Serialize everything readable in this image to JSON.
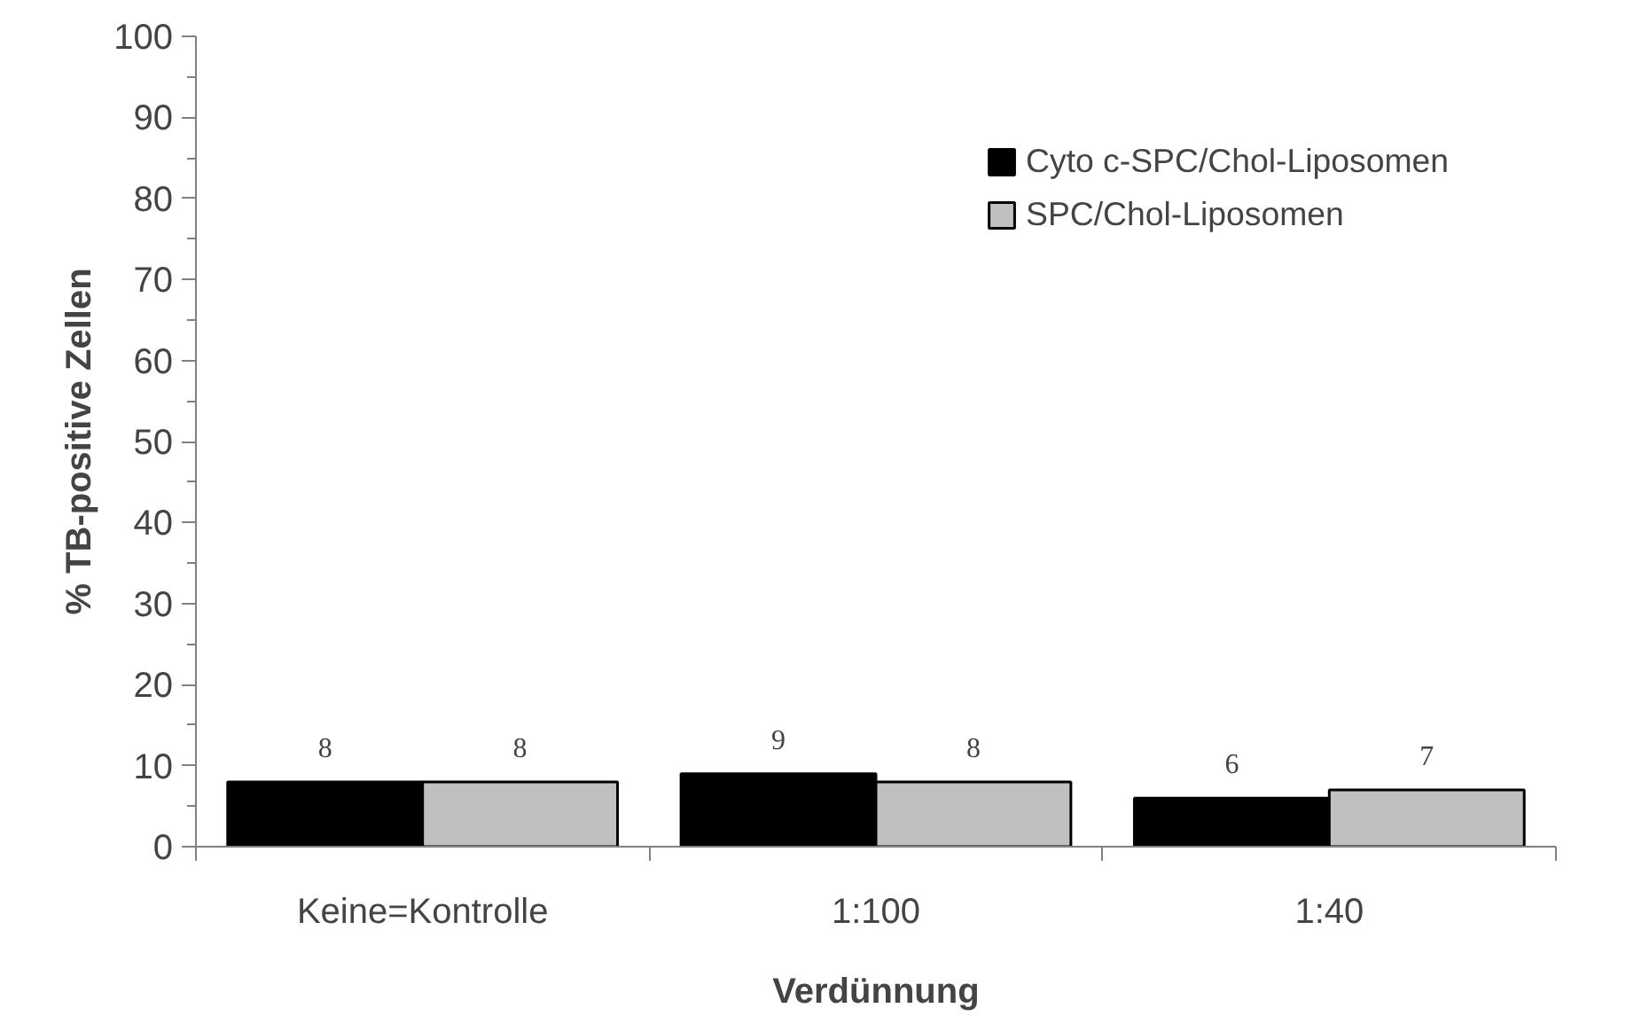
{
  "chart_data": {
    "type": "bar",
    "xlabel": "Verdünnung",
    "ylabel": "% TB-positive Zellen",
    "categories": [
      "Keine=Kontrolle",
      "1:100",
      "1:40"
    ],
    "series": [
      {
        "name": "Cyto c-SPC/Chol-Liposomen",
        "color": "#000000",
        "values": [
          8,
          9,
          6
        ]
      },
      {
        "name": "SPC/Chol-Liposomen",
        "color": "#c0c0c0",
        "values": [
          8,
          8,
          7
        ]
      }
    ],
    "ylim": [
      0,
      100
    ],
    "yticks": [
      0,
      {
        "value": 5,
        "label": null
      },
      10,
      {
        "value": 15,
        "label": null
      },
      20,
      {
        "value": 25,
        "label": null
      },
      30,
      {
        "value": 35,
        "label": null
      },
      40,
      {
        "value": 45,
        "label": null
      },
      50,
      {
        "value": 55,
        "label": null
      },
      60,
      {
        "value": 65,
        "label": null
      },
      70,
      {
        "value": 75,
        "label": null
      },
      80,
      {
        "value": 85,
        "label": null
      },
      90,
      {
        "value": 95,
        "label": null
      },
      100
    ],
    "data_labels": true,
    "grid": false,
    "legend": "top right"
  }
}
